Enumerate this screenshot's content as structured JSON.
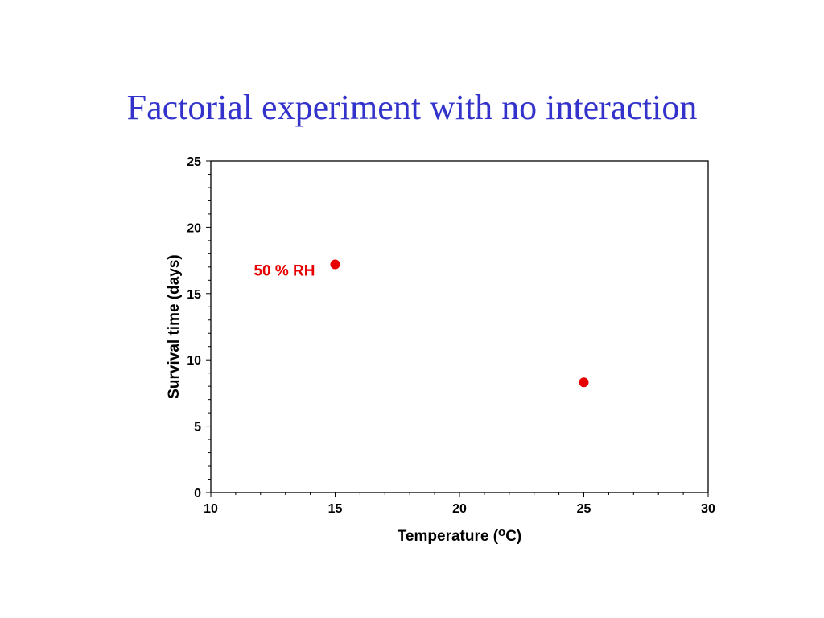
{
  "slide": {
    "title": "Factorial experiment with no interaction"
  },
  "chart_data": {
    "type": "scatter",
    "xlabel": "Temperature (",
    "xlabel_super": "o",
    "xlabel_unit": "C)",
    "ylabel": "Survival time (days)",
    "xlim": [
      10,
      30
    ],
    "ylim": [
      0,
      25
    ],
    "x_ticks": [
      10,
      15,
      20,
      25,
      30
    ],
    "y_ticks": [
      0,
      5,
      10,
      15,
      20,
      25
    ],
    "grid": false,
    "point_color": "#e60000",
    "annotation_color": "#e60000",
    "points": [
      {
        "x": 15,
        "y": 17.2
      },
      {
        "x": 25,
        "y": 8.3
      }
    ],
    "annotations": [
      {
        "text": "50 % RH",
        "x": 15,
        "y": 17.2,
        "position": "left"
      }
    ]
  }
}
